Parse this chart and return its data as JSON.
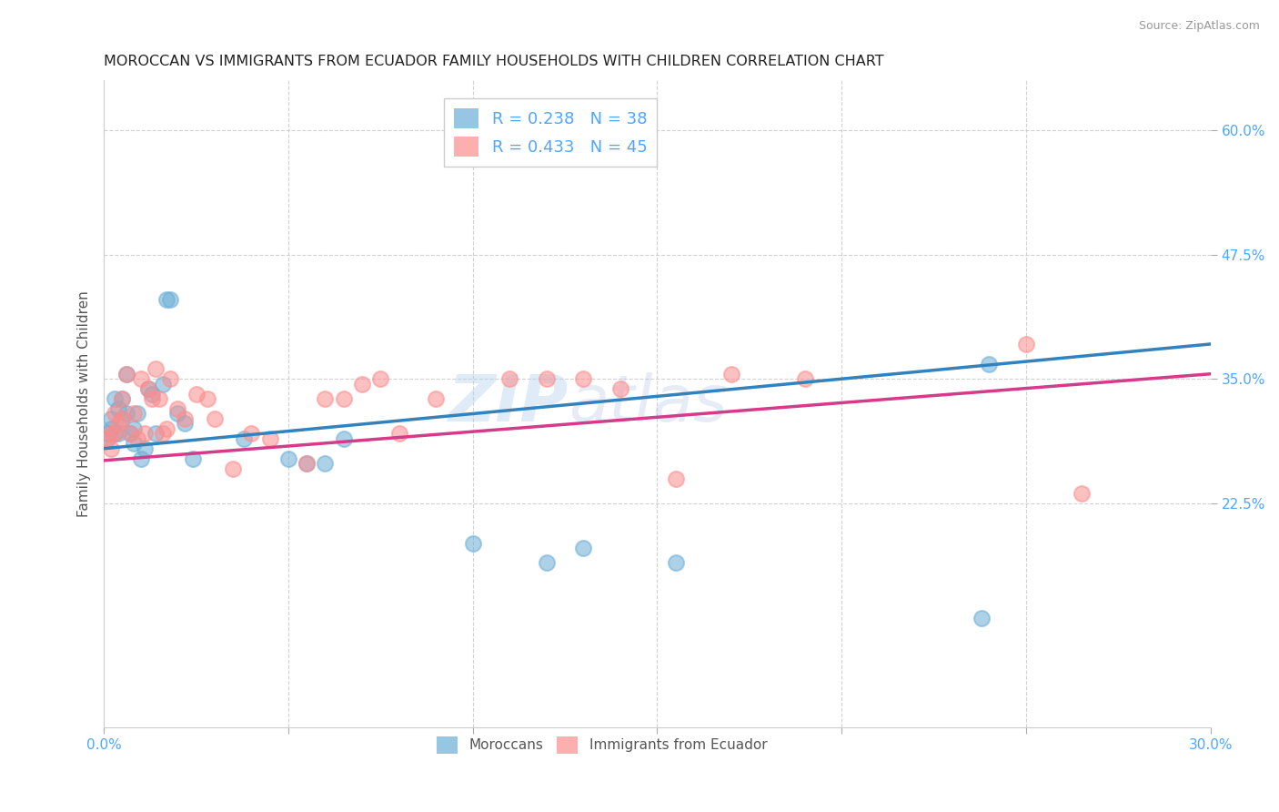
{
  "title": "MOROCCAN VS IMMIGRANTS FROM ECUADOR FAMILY HOUSEHOLDS WITH CHILDREN CORRELATION CHART",
  "source": "Source: ZipAtlas.com",
  "ylabel": "Family Households with Children",
  "xlim": [
    0.0,
    0.3
  ],
  "ylim": [
    0.0,
    0.65
  ],
  "x_ticks": [
    0.0,
    0.05,
    0.1,
    0.15,
    0.2,
    0.25,
    0.3
  ],
  "x_tick_labels": [
    "0.0%",
    "",
    "",
    "",
    "",
    "",
    "30.0%"
  ],
  "y_ticks": [
    0.225,
    0.35,
    0.475,
    0.6
  ],
  "y_tick_labels": [
    "22.5%",
    "35.0%",
    "47.5%",
    "60.0%"
  ],
  "moroccan_color": "#6baed6",
  "ecuador_color": "#fc8d8d",
  "moroccan_line_color": "#3182bd",
  "ecuador_line_color": "#d63a8a",
  "R_moroccan": 0.238,
  "N_moroccan": 38,
  "R_ecuador": 0.433,
  "N_ecuador": 45,
  "background_color": "#ffffff",
  "grid_color": "#cccccc",
  "moroccan_x": [
    0.001,
    0.001,
    0.002,
    0.002,
    0.003,
    0.003,
    0.004,
    0.004,
    0.005,
    0.005,
    0.006,
    0.006,
    0.007,
    0.008,
    0.008,
    0.009,
    0.01,
    0.011,
    0.012,
    0.013,
    0.014,
    0.016,
    0.017,
    0.018,
    0.02,
    0.022,
    0.024,
    0.038,
    0.05,
    0.055,
    0.06,
    0.065,
    0.1,
    0.12,
    0.13,
    0.155,
    0.238,
    0.24
  ],
  "moroccan_y": [
    0.29,
    0.295,
    0.31,
    0.3,
    0.33,
    0.295,
    0.32,
    0.295,
    0.33,
    0.31,
    0.355,
    0.315,
    0.295,
    0.3,
    0.285,
    0.315,
    0.27,
    0.28,
    0.34,
    0.335,
    0.295,
    0.345,
    0.43,
    0.43,
    0.315,
    0.305,
    0.27,
    0.29,
    0.27,
    0.265,
    0.265,
    0.29,
    0.185,
    0.165,
    0.18,
    0.165,
    0.11,
    0.365
  ],
  "ecuador_x": [
    0.001,
    0.002,
    0.002,
    0.003,
    0.003,
    0.004,
    0.005,
    0.005,
    0.006,
    0.007,
    0.008,
    0.009,
    0.01,
    0.011,
    0.012,
    0.013,
    0.014,
    0.015,
    0.016,
    0.017,
    0.018,
    0.02,
    0.022,
    0.025,
    0.028,
    0.03,
    0.035,
    0.04,
    0.045,
    0.055,
    0.06,
    0.065,
    0.07,
    0.075,
    0.08,
    0.09,
    0.11,
    0.12,
    0.13,
    0.14,
    0.155,
    0.17,
    0.19,
    0.25,
    0.265
  ],
  "ecuador_y": [
    0.29,
    0.295,
    0.28,
    0.315,
    0.295,
    0.305,
    0.31,
    0.33,
    0.355,
    0.295,
    0.315,
    0.29,
    0.35,
    0.295,
    0.34,
    0.33,
    0.36,
    0.33,
    0.295,
    0.3,
    0.35,
    0.32,
    0.31,
    0.335,
    0.33,
    0.31,
    0.26,
    0.295,
    0.29,
    0.265,
    0.33,
    0.33,
    0.345,
    0.35,
    0.295,
    0.33,
    0.35,
    0.35,
    0.35,
    0.34,
    0.25,
    0.355,
    0.35,
    0.385,
    0.235
  ],
  "watermark_zip": "ZIP",
  "watermark_atlas": "atlas"
}
